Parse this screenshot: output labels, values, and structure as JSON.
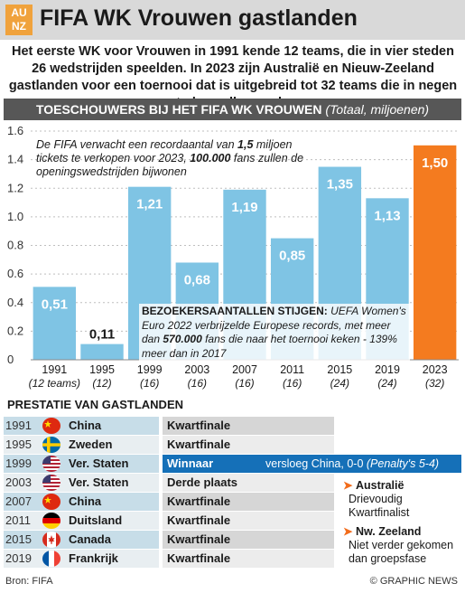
{
  "header": {
    "logo_top": "AU",
    "logo_bottom": "NZ",
    "title": "FIFA WK Vrouwen gastlanden"
  },
  "intro": "Het eerste WK voor Vrouwen in 1991 kende 12 teams, die in vier steden 26 wedstrijden speelden. In 2023 zijn Australië en Nieuw-Zeeland gastlanden voor een toernooi dat is uitgebreid tot 32 teams die in negen steden zullen spelen",
  "chart_header": {
    "main": "TOESCHOUWERS BIJ HET FIFA WK VROUWEN",
    "sub": "(Totaal, miljoenen)"
  },
  "chart_data": {
    "type": "bar",
    "categories": [
      "1991",
      "1995",
      "1999",
      "2003",
      "2007",
      "2011",
      "2015",
      "2019",
      "2023"
    ],
    "teams": [
      "(12 teams)",
      "(12)",
      "(16)",
      "(16)",
      "(16)",
      "(16)",
      "(24)",
      "(24)",
      "(32)"
    ],
    "values": [
      0.51,
      0.11,
      1.21,
      0.68,
      1.19,
      0.85,
      1.35,
      1.13,
      1.5
    ],
    "value_labels": [
      "0,51",
      "0,11",
      "1,21",
      "0,68",
      "1,19",
      "0,85",
      "1,35",
      "1,13",
      "1,50"
    ],
    "highlight_index": 8,
    "ylim": [
      0,
      1.6
    ],
    "yticks": [
      0,
      0.2,
      0.4,
      0.6,
      0.8,
      1.0,
      1.2,
      1.4,
      1.6
    ],
    "ytick_labels": [
      "0",
      "0.2",
      "0.4",
      "0.6",
      "0.8",
      "1.0",
      "1.2",
      "1.4",
      "1.6"
    ],
    "colors": {
      "bar": "#7fc4e4",
      "highlight": "#f47b1f",
      "gridline": "#bfbfbf"
    }
  },
  "annotations": {
    "forecast": {
      "part1": "De FIFA verwacht een recordaantal van ",
      "bold1": "1,5",
      "part2": " miljoen tickets te verkopen voor 2023, ",
      "bold2": "100.000",
      "part3": " fans zullen de openingswedstrijden bijwonen"
    },
    "visitors": {
      "lead": "BEZOEKERSAANTALLEN STIJGEN:",
      "part1": " UEFA Women's Euro 2022 verbrijzelde Europese records, met meer dan ",
      "bold1": "570.000",
      "part2": " fans die naar het toernooi keken - 139% meer dan in 2017"
    }
  },
  "results": {
    "title": "PRESTATIE VAN GASTLANDEN",
    "rows": [
      {
        "year": "1991",
        "country": "China",
        "result": "Kwartfinale",
        "flag": "china"
      },
      {
        "year": "1995",
        "country": "Zweden",
        "result": "Kwartfinale",
        "flag": "sweden"
      },
      {
        "year": "1999",
        "country": "Ver. Staten",
        "result": "Winnaar",
        "extra": "versloeg China, 0-0 ",
        "extra_italic": "(Penalty's 5-4)",
        "flag": "usa",
        "highlight": true
      },
      {
        "year": "2003",
        "country": "Ver. Staten",
        "result": "Derde plaats",
        "flag": "usa"
      },
      {
        "year": "2007",
        "country": "China",
        "result": "Kwartfinale",
        "flag": "china"
      },
      {
        "year": "2011",
        "country": "Duitsland",
        "result": "Kwartfinale",
        "flag": "germany"
      },
      {
        "year": "2015",
        "country": "Canada",
        "result": "Kwartfinale",
        "flag": "canada"
      },
      {
        "year": "2019",
        "country": "Frankrijk",
        "result": "Kwartfinale",
        "flag": "france"
      }
    ]
  },
  "hosts": {
    "australia": {
      "name": "Australië",
      "line1": "Drievoudig",
      "line2": "Kwartfinalist"
    },
    "new_zealand": {
      "name": "Nw. Zeeland",
      "line1": "Niet verder gekomen",
      "line2": "dan groepsfase"
    }
  },
  "footer": {
    "source": "Bron: FIFA",
    "credit": "© GRAPHIC NEWS"
  }
}
